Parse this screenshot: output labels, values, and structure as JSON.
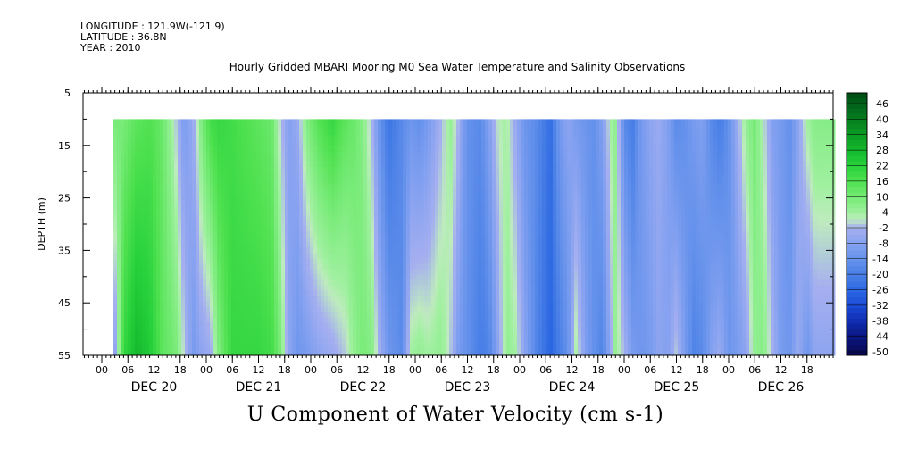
{
  "header": {
    "longitude": "LONGITUDE : 121.9W(-121.9)",
    "latitude": "LATITUDE : 36.8N",
    "year": "YEAR : 2010",
    "title": "Hourly Gridded MBARI Mooring M0 Sea Water Temperature and Salinity Observations"
  },
  "chart_data": {
    "type": "heatmap",
    "title": "Hourly Gridded MBARI Mooring M0 Sea Water Temperature and Salinity Observations",
    "xlabel": "U Component of Water Velocity (cm s-1)",
    "ylabel": "DEPTH (m)",
    "y_range": [
      5,
      55
    ],
    "y_inverted": true,
    "y_ticks": [
      5,
      15,
      25,
      35,
      45,
      55
    ],
    "x_range_hours": [
      0,
      168
    ],
    "x_hour_ticks": [
      "00",
      "06",
      "12",
      "18",
      "00",
      "06",
      "12",
      "18",
      "00",
      "06",
      "12",
      "18",
      "00",
      "06",
      "12",
      "18",
      "00",
      "06",
      "12",
      "18",
      "00",
      "06",
      "12",
      "18",
      "00",
      "06",
      "12",
      "18"
    ],
    "x_day_labels": [
      "DEC 20",
      "DEC 21",
      "DEC 22",
      "DEC 23",
      "DEC 24",
      "DEC 25",
      "DEC 26"
    ],
    "data_depth_range": [
      10,
      55
    ],
    "colorbar_ticks": [
      46,
      40,
      34,
      28,
      22,
      16,
      10,
      4,
      -2,
      -8,
      -14,
      -20,
      -26,
      -32,
      -38,
      -44,
      -50
    ],
    "colorbar_range": [
      -50,
      50
    ],
    "profiles": [
      {
        "hour": 0.5,
        "surface": 12,
        "bottom": -22
      },
      {
        "hour": 2,
        "surface": 10,
        "bottom": -20
      },
      {
        "hour": 5,
        "surface": 10,
        "bottom": 20
      },
      {
        "hour": 8,
        "surface": 14,
        "bottom": 28
      },
      {
        "hour": 11,
        "surface": 16,
        "bottom": 24
      },
      {
        "hour": 14,
        "surface": 12,
        "bottom": 14
      },
      {
        "hour": 17,
        "surface": 0,
        "bottom": 10
      },
      {
        "hour": 19,
        "surface": -10,
        "bottom": 0
      },
      {
        "hour": 21,
        "surface": -4,
        "bottom": -10
      },
      {
        "hour": 23,
        "surface": 10,
        "bottom": -6
      },
      {
        "hour": 25,
        "surface": 18,
        "bottom": -4
      },
      {
        "hour": 27,
        "surface": 20,
        "bottom": 10
      },
      {
        "hour": 30,
        "surface": 18,
        "bottom": 20
      },
      {
        "hour": 33,
        "surface": 16,
        "bottom": 20
      },
      {
        "hour": 36,
        "surface": 14,
        "bottom": 20
      },
      {
        "hour": 39,
        "surface": 12,
        "bottom": 18
      },
      {
        "hour": 41,
        "surface": 0,
        "bottom": 10
      },
      {
        "hour": 43,
        "surface": -8,
        "bottom": -6
      },
      {
        "hour": 45,
        "surface": -4,
        "bottom": -12
      },
      {
        "hour": 47,
        "surface": 8,
        "bottom": -10
      },
      {
        "hour": 50,
        "surface": 16,
        "bottom": -6
      },
      {
        "hour": 53,
        "surface": 20,
        "bottom": -4
      },
      {
        "hour": 56,
        "surface": 14,
        "bottom": 0
      },
      {
        "hour": 58,
        "surface": 12,
        "bottom": 6
      },
      {
        "hour": 60,
        "surface": 8,
        "bottom": 10
      },
      {
        "hour": 62,
        "surface": -2,
        "bottom": 8
      },
      {
        "hour": 64,
        "surface": -14,
        "bottom": -4
      },
      {
        "hour": 66,
        "surface": -22,
        "bottom": -12
      },
      {
        "hour": 69,
        "surface": -16,
        "bottom": -16
      },
      {
        "hour": 71,
        "surface": -12,
        "bottom": 4
      },
      {
        "hour": 73,
        "surface": -14,
        "bottom": 6
      },
      {
        "hour": 75,
        "surface": -10,
        "bottom": 4
      },
      {
        "hour": 78,
        "surface": -2,
        "bottom": 6
      },
      {
        "hour": 80,
        "surface": 6,
        "bottom": 0
      },
      {
        "hour": 82,
        "surface": -2,
        "bottom": -10
      },
      {
        "hour": 84,
        "surface": -14,
        "bottom": -14
      },
      {
        "hour": 87,
        "surface": -16,
        "bottom": -20
      },
      {
        "hour": 89,
        "surface": -8,
        "bottom": -18
      },
      {
        "hour": 91,
        "surface": 2,
        "bottom": -6
      },
      {
        "hour": 93,
        "surface": 4,
        "bottom": 6
      },
      {
        "hour": 95,
        "surface": -4,
        "bottom": 4
      },
      {
        "hour": 97,
        "surface": -12,
        "bottom": -6
      },
      {
        "hour": 100,
        "surface": -16,
        "bottom": -18
      },
      {
        "hour": 103,
        "surface": -24,
        "bottom": -26
      },
      {
        "hour": 105,
        "surface": -12,
        "bottom": -20
      },
      {
        "hour": 107,
        "surface": -6,
        "bottom": -14
      },
      {
        "hour": 109,
        "surface": -10,
        "bottom": 4
      },
      {
        "hour": 111,
        "surface": -12,
        "bottom": -8
      },
      {
        "hour": 113,
        "surface": -14,
        "bottom": -14
      },
      {
        "hour": 115,
        "surface": -8,
        "bottom": -18
      },
      {
        "hour": 117,
        "surface": 4,
        "bottom": -4
      },
      {
        "hour": 118,
        "surface": 6,
        "bottom": 6
      },
      {
        "hour": 120,
        "surface": -16,
        "bottom": -2
      },
      {
        "hour": 122,
        "surface": -20,
        "bottom": -10
      },
      {
        "hour": 124,
        "surface": -10,
        "bottom": -12
      },
      {
        "hour": 126,
        "surface": -6,
        "bottom": -10
      },
      {
        "hour": 128,
        "surface": -4,
        "bottom": -6
      },
      {
        "hour": 130,
        "surface": -8,
        "bottom": -8
      },
      {
        "hour": 132,
        "surface": -16,
        "bottom": 0
      },
      {
        "hour": 134,
        "surface": -14,
        "bottom": -10
      },
      {
        "hour": 136,
        "surface": -10,
        "bottom": -18
      },
      {
        "hour": 138,
        "surface": -8,
        "bottom": -16
      },
      {
        "hour": 140,
        "surface": -16,
        "bottom": -8
      },
      {
        "hour": 142,
        "surface": -20,
        "bottom": -4
      },
      {
        "hour": 144,
        "surface": -14,
        "bottom": -12
      },
      {
        "hour": 146,
        "surface": -4,
        "bottom": -10
      },
      {
        "hour": 148,
        "surface": 6,
        "bottom": -6
      },
      {
        "hour": 150,
        "surface": 10,
        "bottom": 6
      },
      {
        "hour": 152,
        "surface": 2,
        "bottom": 8
      },
      {
        "hour": 154,
        "surface": -8,
        "bottom": -2
      },
      {
        "hour": 156,
        "surface": -10,
        "bottom": -10
      },
      {
        "hour": 158,
        "surface": -14,
        "bottom": -12
      },
      {
        "hour": 160,
        "surface": -6,
        "bottom": -4
      },
      {
        "hour": 162,
        "surface": 4,
        "bottom": -12
      },
      {
        "hour": 164,
        "surface": 8,
        "bottom": -6
      }
    ]
  }
}
